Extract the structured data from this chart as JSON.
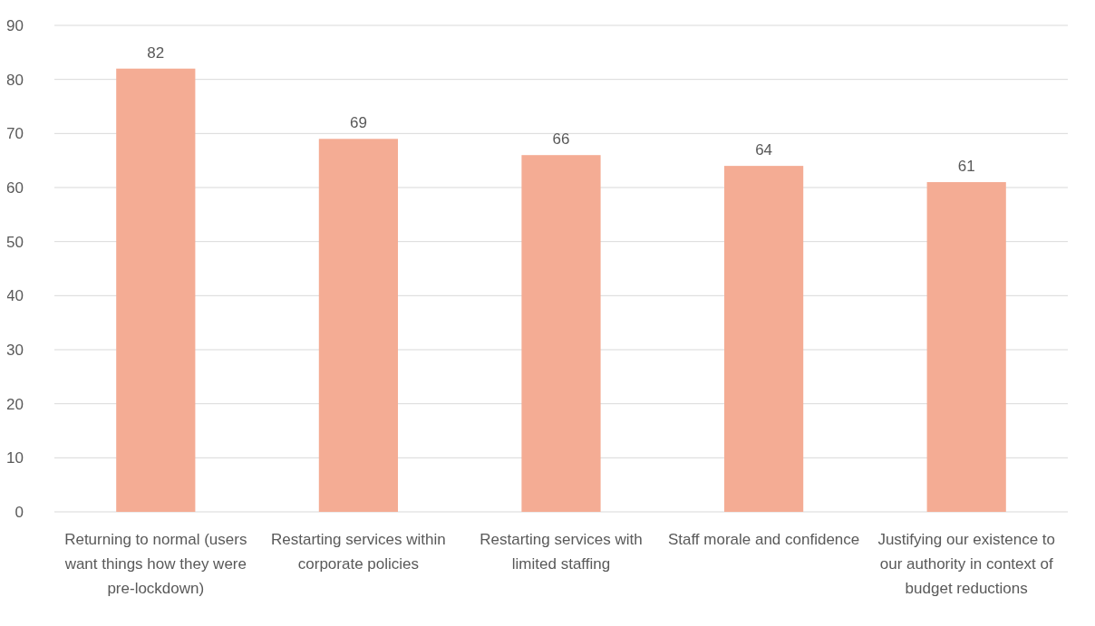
{
  "chart_data": {
    "type": "bar",
    "categories": [
      "Returning to normal (users want things how they were pre-lockdown)",
      "Restarting services within corporate policies",
      "Restarting services with limited staffing",
      "Staff morale and confidence",
      "Justifying our existence to our authority in context of budget reductions"
    ],
    "values": [
      82,
      69,
      66,
      64,
      61
    ],
    "color": "#f4ac94",
    "ylim": [
      0,
      90
    ],
    "yticks": [
      0,
      10,
      20,
      30,
      40,
      50,
      60,
      70,
      80,
      90
    ],
    "grid": "y",
    "data_labels": true
  }
}
